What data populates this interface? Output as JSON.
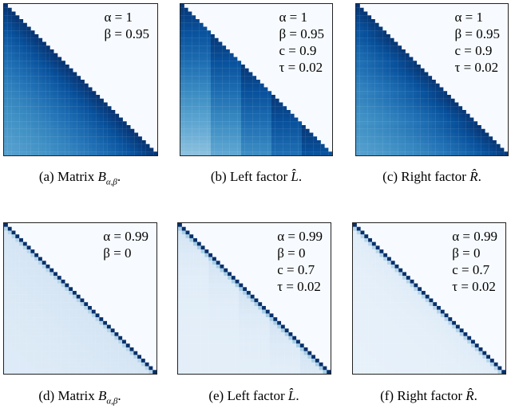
{
  "colormap": [
    "#f7fbff",
    "#deebf7",
    "#c6dbef",
    "#9ecae1",
    "#6baed6",
    "#4292c6",
    "#2171b5",
    "#08519c",
    "#08306b"
  ],
  "panels": [
    {
      "id": "a",
      "kind": "matrix",
      "label": "(a)",
      "caption": "Matrix",
      "symbol": "B",
      "subscript": "α,β",
      "end": ".",
      "params": [
        "α = 1",
        "β = 0.95"
      ]
    },
    {
      "id": "b",
      "kind": "left",
      "label": "(b)",
      "caption": "Left factor",
      "symbol": "L̂",
      "subscript": "",
      "end": ".",
      "params": [
        "α = 1",
        "β = 0.95",
        "c = 0.9",
        "τ = 0.02"
      ]
    },
    {
      "id": "c",
      "kind": "right",
      "label": "(c)",
      "caption": "Right factor",
      "symbol": "R̂",
      "subscript": "",
      "end": ".",
      "params": [
        "α = 1",
        "β = 0.95",
        "c = 0.9",
        "τ = 0.02"
      ]
    },
    {
      "id": "d",
      "kind": "matrix",
      "label": "(d)",
      "caption": "Matrix",
      "symbol": "B",
      "subscript": "α,β",
      "end": ".",
      "params": [
        "α = 0.99",
        "β = 0"
      ]
    },
    {
      "id": "e",
      "kind": "left",
      "label": "(e)",
      "caption": "Left factor",
      "symbol": "L̂",
      "subscript": "",
      "end": ".",
      "params": [
        "α = 0.99",
        "β = 0",
        "c = 0.7",
        "τ = 0.02"
      ]
    },
    {
      "id": "f",
      "kind": "right",
      "label": "(f)",
      "caption": "Right factor",
      "symbol": "R̂",
      "subscript": "",
      "end": ".",
      "params": [
        "α = 0.99",
        "β = 0",
        "c = 0.7",
        "τ = 0.02"
      ]
    }
  ]
}
